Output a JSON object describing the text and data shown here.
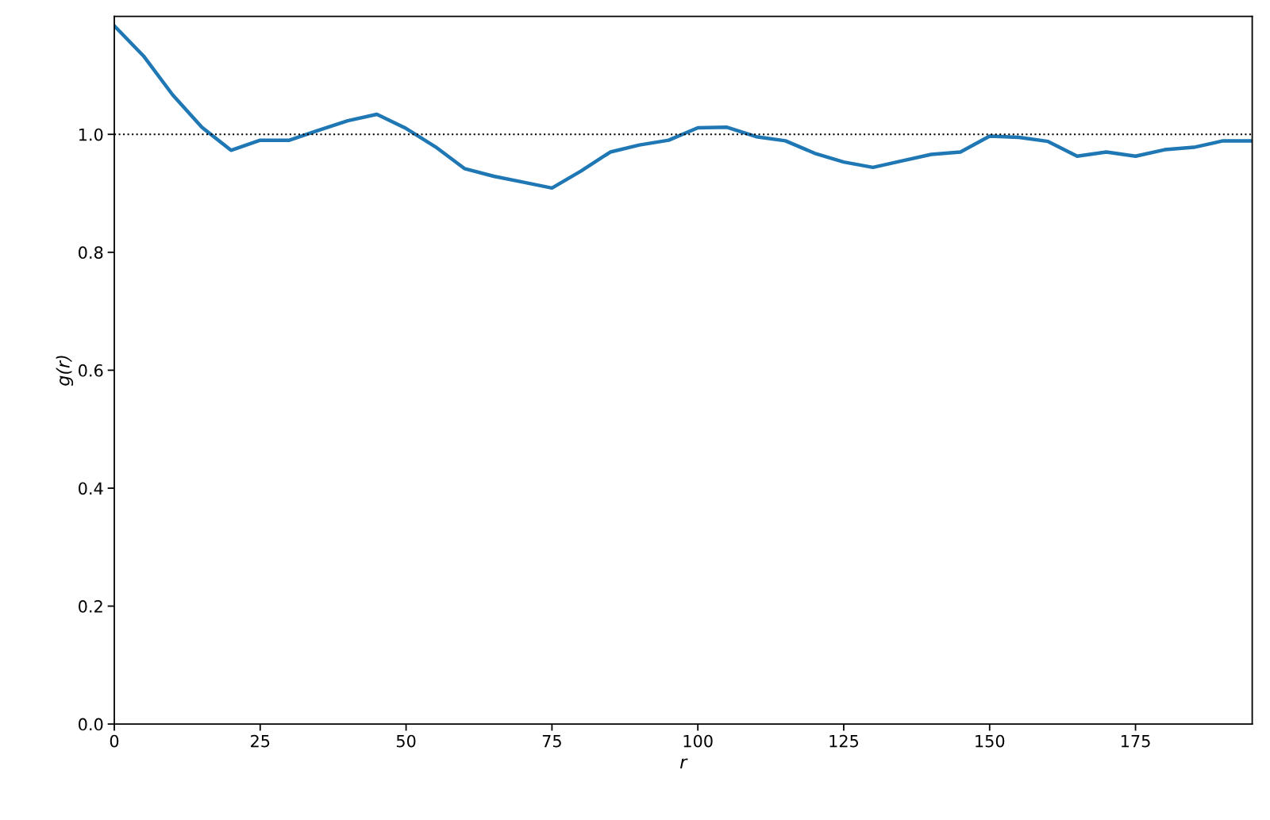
{
  "chart_data": {
    "type": "line",
    "xlabel": "r",
    "ylabel": "g(r)",
    "x": [
      0,
      5,
      10,
      15,
      20,
      25,
      30,
      35,
      40,
      45,
      50,
      55,
      60,
      65,
      70,
      75,
      80,
      85,
      90,
      95,
      100,
      105,
      110,
      115,
      120,
      125,
      130,
      135,
      140,
      145,
      150,
      155,
      160,
      165,
      170,
      175,
      180,
      185,
      190,
      195
    ],
    "series": [
      {
        "color": "#1f77b4",
        "values": [
          1.184,
          1.133,
          1.067,
          1.012,
          0.973,
          0.99,
          0.99,
          1.007,
          1.023,
          1.034,
          1.01,
          0.979,
          0.942,
          0.929,
          0.919,
          0.909,
          0.938,
          0.97,
          0.982,
          0.99,
          1.011,
          1.012,
          0.996,
          0.989,
          0.968,
          0.953,
          0.944,
          0.955,
          0.966,
          0.97,
          0.997,
          0.995,
          0.988,
          0.963,
          0.97,
          0.963,
          0.974,
          0.978,
          0.989,
          0.989
        ]
      }
    ],
    "xlim": [
      0,
      195
    ],
    "xticks": [
      0,
      25,
      50,
      75,
      100,
      125,
      150,
      175
    ],
    "ylim": [
      0,
      1.2
    ],
    "yticks": [
      {
        "value": 0,
        "label": "0.0"
      },
      {
        "value": 0.2,
        "label": "0.2"
      },
      {
        "value": 0.4,
        "label": "0.4"
      },
      {
        "value": 0.6,
        "label": "0.6"
      },
      {
        "value": 0.8,
        "label": "0.8"
      },
      {
        "value": 1.0,
        "label": "1.0"
      }
    ],
    "ref_lines": [
      {
        "axis": "y",
        "value": 1.0,
        "color": "#000000",
        "line_style": "dotted"
      }
    ],
    "grid": false,
    "legend": false,
    "marker": "none",
    "line_style": "solid"
  }
}
